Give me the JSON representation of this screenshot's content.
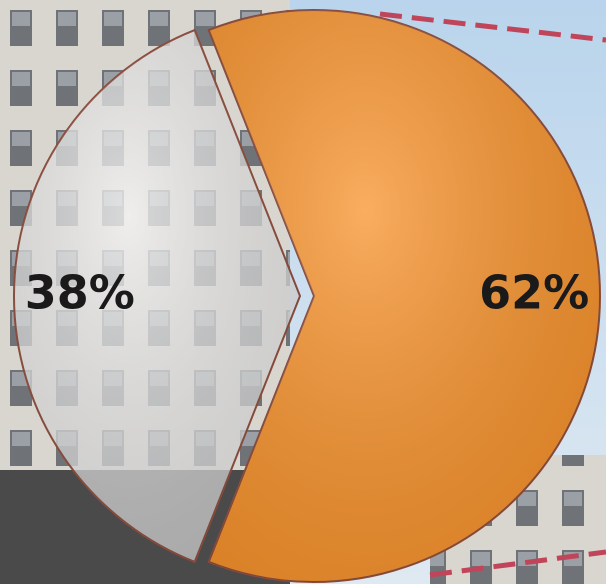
{
  "chart_data": {
    "type": "pie",
    "values": [
      62,
      38
    ],
    "value_labels": [
      "62%",
      "38%"
    ],
    "colors": [
      "#f8922a",
      "#eeeeee"
    ]
  }
}
